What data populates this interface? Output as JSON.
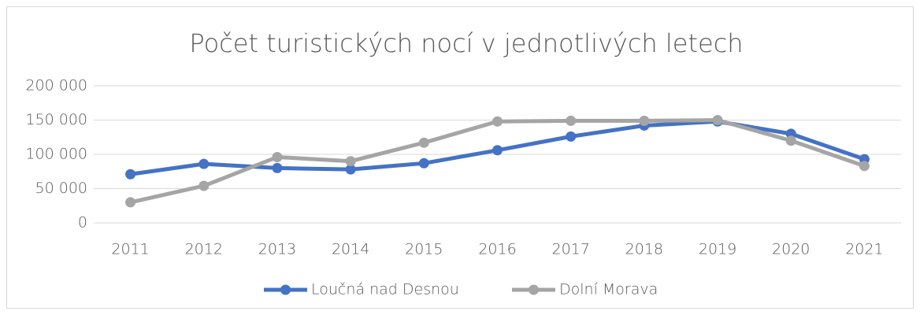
{
  "chart_data": {
    "type": "line",
    "title": "Počet turistických nocí v jednotlivých letech",
    "categories": [
      "2011",
      "2012",
      "2013",
      "2014",
      "2015",
      "2016",
      "2017",
      "2018",
      "2019",
      "2020",
      "2021"
    ],
    "series": [
      {
        "name": "Loučná nad Desnou",
        "color": "#4472c4",
        "values": [
          71000,
          86000,
          80000,
          78000,
          87000,
          106000,
          126000,
          142000,
          148000,
          130000,
          93000
        ]
      },
      {
        "name": "Dolní Morava",
        "color": "#a5a5a5",
        "values": [
          30000,
          54000,
          96000,
          90000,
          117000,
          148000,
          149000,
          149000,
          150000,
          120000,
          83000
        ]
      }
    ],
    "ylim": [
      0,
      200000
    ],
    "yticks": [
      0,
      {
        "value": 50000,
        "label": "50 000"
      },
      {
        "value": 100000,
        "label": "100 000"
      },
      {
        "value": 150000,
        "label": "150 000"
      },
      {
        "value": 200000,
        "label": "200 000"
      }
    ],
    "grid": true,
    "legend": "bottom"
  }
}
